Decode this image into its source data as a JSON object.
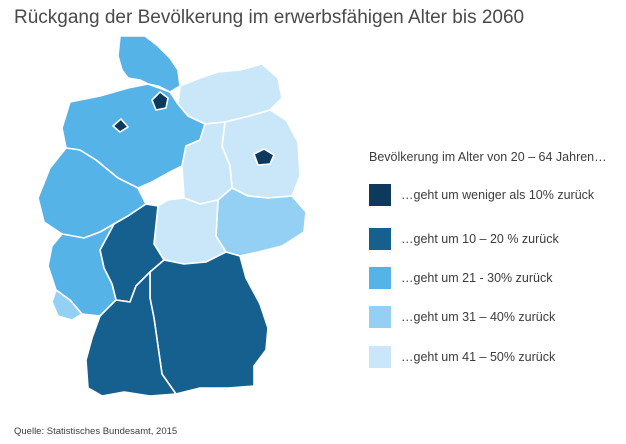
{
  "title": "Rückgang der Bevölkerung im erwerbsfähigen Alter bis 2060",
  "legend": {
    "heading": "Bevölkerung im Alter von 20 – 64 Jahren…",
    "items": [
      {
        "label": "…geht um weniger als 10% zurück",
        "color": "#0d3a5c"
      },
      {
        "label": "…geht um 10 – 20 % zurück",
        "color": "#15608f"
      },
      {
        "label": "…geht um 21 - 30% zurück",
        "color": "#55b3e8"
      },
      {
        "label": "…geht um 31 – 40% zurück",
        "color": "#93d0f3"
      },
      {
        "label": "…geht um 41 – 50% zurück",
        "color": "#c9e7f8"
      }
    ]
  },
  "source": "Quelle: Statistisches Bundesamt, 2015"
}
